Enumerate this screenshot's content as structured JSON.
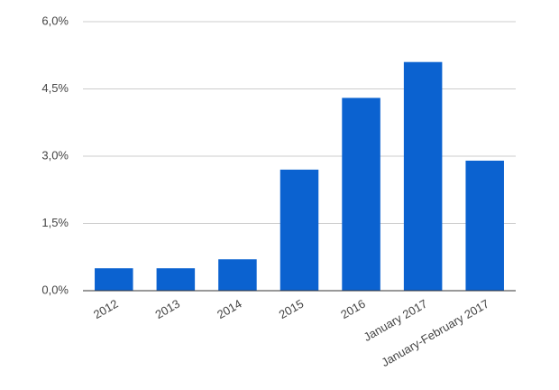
{
  "chart_data": {
    "type": "bar",
    "categories": [
      "2012",
      "2013",
      "2014",
      "2015",
      "2016",
      "January 2017",
      "January-February 2017"
    ],
    "values": [
      0.5,
      0.5,
      0.7,
      2.7,
      4.3,
      5.1,
      2.9
    ],
    "color": "#0b62d0",
    "ylim": [
      0,
      6
    ],
    "yticks": [
      {
        "value": 0,
        "label": "0,0%"
      },
      {
        "value": 1.5,
        "label": "1,5%"
      },
      {
        "value": 3,
        "label": "3,0%"
      },
      {
        "value": 4.5,
        "label": "4,5%"
      },
      {
        "value": 6,
        "label": "6,0%"
      }
    ],
    "grid": true
  }
}
